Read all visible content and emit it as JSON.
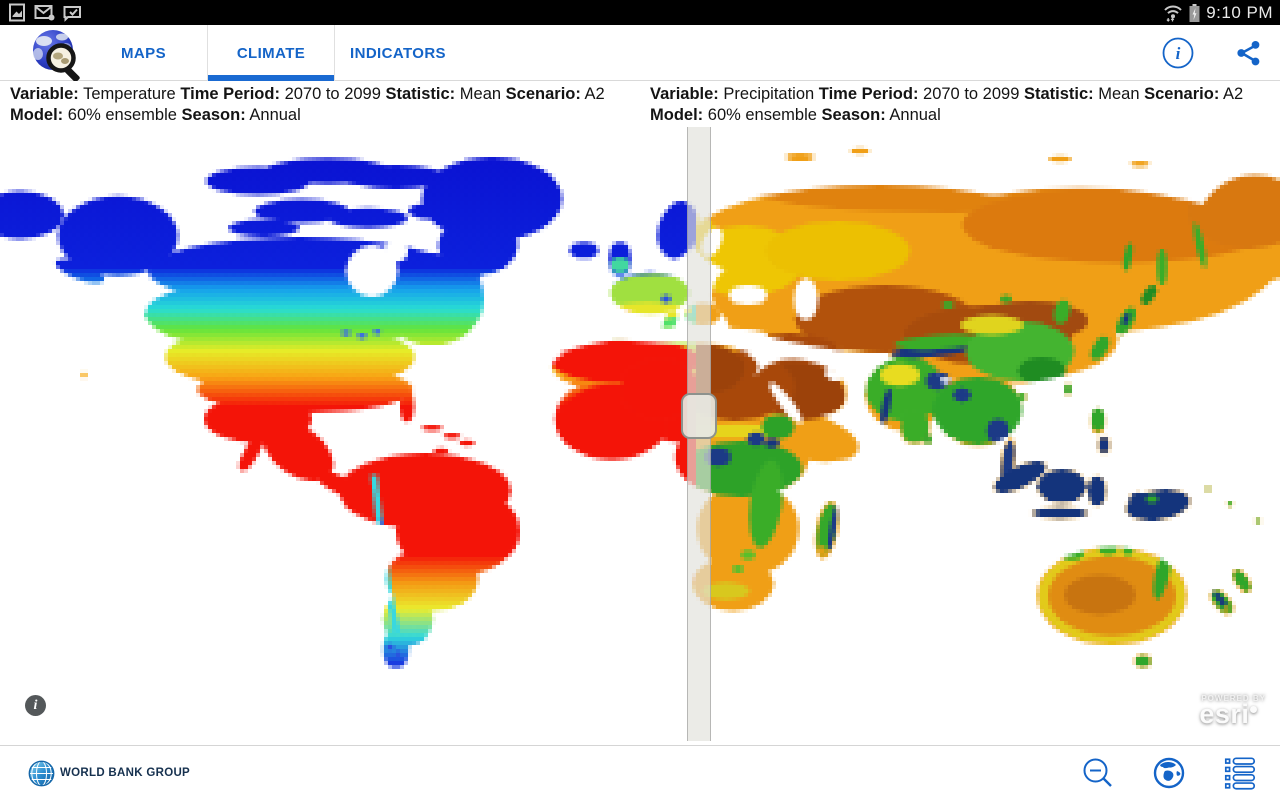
{
  "status_bar": {
    "time": "9:10 PM",
    "icons": [
      "screenshot-icon",
      "email-icon",
      "message-check-icon",
      "wifi-icon",
      "battery-icon"
    ]
  },
  "app_bar": {
    "tabs": [
      {
        "label": "MAPS"
      },
      {
        "label": "CLIMATE"
      },
      {
        "label": "INDICATORS"
      }
    ],
    "active_tab": "CLIMATE",
    "actions": [
      "info-icon",
      "share-icon"
    ]
  },
  "panels": {
    "left": {
      "variable_label": "Variable:",
      "variable": "Temperature",
      "time_period_label": "Time Period:",
      "time_period": "2070 to 2099",
      "statistic_label": "Statistic:",
      "statistic": "Mean",
      "scenario_label": "Scenario:",
      "scenario": "A2",
      "model_label": "Model:",
      "model": "60% ensemble",
      "season_label": "Season:",
      "season": "Annual"
    },
    "right": {
      "variable_label": "Variable:",
      "variable": "Precipitation",
      "time_period_label": "Time Period:",
      "time_period": "2070 to 2099",
      "statistic_label": "Statistic:",
      "statistic": "Mean",
      "scenario_label": "Scenario:",
      "scenario": "A2",
      "model_label": "Model:",
      "model": "60% ensemble",
      "season_label": "Season:",
      "season": "Annual"
    }
  },
  "map": {
    "info_glyph": "i",
    "attribution_small": "POWERED BY",
    "attribution_brand": "esri",
    "temperature_palette": [
      "#0a12d2",
      "#16a0ec",
      "#28dcd4",
      "#62e43c",
      "#e6ec28",
      "#f8a414",
      "#f41408"
    ],
    "precipitation_palette": [
      "#9c420a",
      "#b2520c",
      "#e08c12",
      "#f09f16",
      "#eec604",
      "#e6d41c",
      "#3aad28",
      "#1f8c22",
      "#17357e"
    ]
  },
  "footer": {
    "brand": "WORLD BANK GROUP",
    "actions": [
      "zoom-out-icon",
      "basemap-globe-icon",
      "legend-list-icon"
    ]
  },
  "colors": {
    "accent": "#1464c8",
    "status_icon": "#c9c9c9"
  }
}
